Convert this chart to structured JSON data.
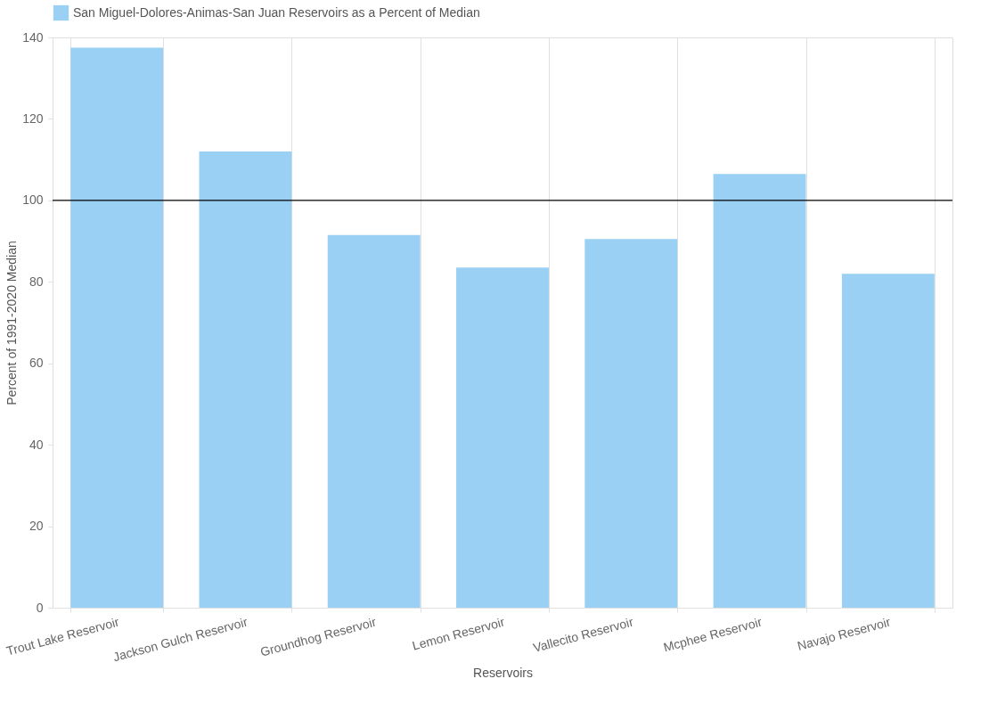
{
  "chart_data": {
    "type": "bar",
    "xlabel": "Reservoirs",
    "ylabel": "Percent of 1991-2020 Median",
    "categories": [
      "Trout Lake Reservoir",
      "Jackson Gulch Reservoir",
      "Groundhog Reservoir",
      "Lemon Reservoir",
      "Vallecito Reservoir",
      "Mcphee Reservoir",
      "Navajo Reservoir"
    ],
    "series": [
      {
        "name": "San Miguel-Dolores-Animas-San Juan Reservoirs as a Percent of Median",
        "color": "#9bd0f5",
        "values": [
          137.5,
          112,
          91.5,
          83.5,
          90.5,
          106.5,
          82
        ]
      }
    ],
    "ylim": [
      0,
      140
    ],
    "yticks": [
      0,
      20,
      40,
      60,
      80,
      100,
      120,
      140
    ],
    "grid": "x",
    "legend": "top",
    "ref_lines": [
      {
        "axis": "y",
        "value": 100,
        "color": "#000000"
      }
    ]
  }
}
